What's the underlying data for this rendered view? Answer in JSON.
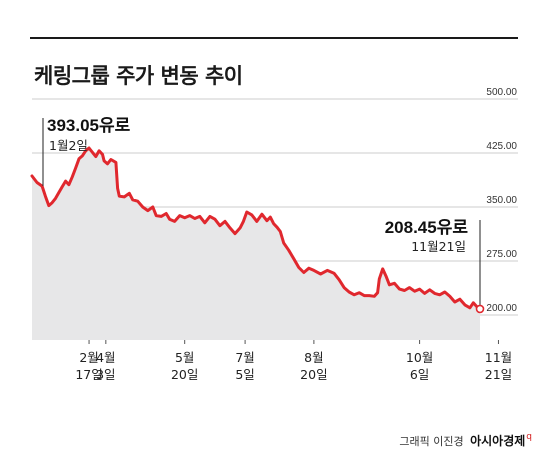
{
  "title": "케링그룹 주가 변동 추이",
  "credit": {
    "graphic_text": "그래픽 이진경",
    "brand": "아시아경제",
    "brand_mark": "q"
  },
  "colors": {
    "line": "#e0282e",
    "area": "#e7e7e8",
    "grid": "#999999",
    "text": "#1a1a1a"
  },
  "chart_data": {
    "type": "area",
    "ylim": [
      200,
      500
    ],
    "yticks": [
      "500.00",
      "425.00",
      "350.00",
      "275.00",
      "200.00"
    ],
    "xticks": [
      {
        "x": 34,
        "line1": "2월",
        "line2": "17일"
      },
      {
        "x": 44,
        "line1": "4월",
        "line2": "3일"
      },
      {
        "x": 91,
        "line1": "5월",
        "line2": "20일"
      },
      {
        "x": 127,
        "line1": "7월",
        "line2": "5일"
      },
      {
        "x": 168,
        "line1": "8월",
        "line2": "20일"
      },
      {
        "x": 231,
        "line1": "10월",
        "line2": "6일"
      },
      {
        "x": 278,
        "line1": "11월",
        "line2": "21일"
      }
    ],
    "annotations": [
      {
        "name": "start",
        "value": "393.05유로",
        "date": "1월2일"
      },
      {
        "name": "end",
        "value": "208.45유로",
        "date": "11월21일"
      }
    ],
    "series": [
      {
        "values": [
          [
            0,
            393.05
          ],
          [
            3,
            384
          ],
          [
            6,
            379
          ],
          [
            8,
            365
          ],
          [
            10,
            352
          ],
          [
            12,
            356
          ],
          [
            14,
            362
          ],
          [
            16,
            370
          ],
          [
            18,
            378
          ],
          [
            20,
            386
          ],
          [
            22,
            381
          ],
          [
            24,
            392
          ],
          [
            26,
            404
          ],
          [
            28,
            417
          ],
          [
            30,
            421
          ],
          [
            32,
            428
          ],
          [
            34,
            432
          ],
          [
            36,
            426
          ],
          [
            38,
            420
          ],
          [
            40,
            428
          ],
          [
            42,
            423
          ],
          [
            43,
            414
          ],
          [
            45,
            410
          ],
          [
            47,
            416
          ],
          [
            50,
            412
          ],
          [
            51,
            376
          ],
          [
            52,
            365
          ],
          [
            55,
            364
          ],
          [
            58,
            369
          ],
          [
            60,
            360
          ],
          [
            63,
            358
          ],
          [
            66,
            350
          ],
          [
            69,
            345
          ],
          [
            72,
            350
          ],
          [
            74,
            338
          ],
          [
            77,
            337
          ],
          [
            80,
            341
          ],
          [
            82,
            333
          ],
          [
            85,
            330
          ],
          [
            88,
            338
          ],
          [
            91,
            335
          ],
          [
            94,
            338
          ],
          [
            97,
            334
          ],
          [
            100,
            337
          ],
          [
            103,
            328
          ],
          [
            106,
            337
          ],
          [
            109,
            333
          ],
          [
            112,
            324
          ],
          [
            115,
            330
          ],
          [
            118,
            321
          ],
          [
            121,
            313
          ],
          [
            124,
            321
          ],
          [
            126,
            330
          ],
          [
            128,
            343
          ],
          [
            131,
            339
          ],
          [
            134,
            330
          ],
          [
            137,
            340
          ],
          [
            140,
            331
          ],
          [
            142,
            336
          ],
          [
            144,
            327
          ],
          [
            146,
            322
          ],
          [
            148,
            316
          ],
          [
            150,
            300
          ],
          [
            153,
            290
          ],
          [
            156,
            278
          ],
          [
            159,
            266
          ],
          [
            162,
            259
          ],
          [
            165,
            265
          ],
          [
            168,
            262
          ],
          [
            172,
            257
          ],
          [
            176,
            262
          ],
          [
            180,
            258
          ],
          [
            183,
            249
          ],
          [
            186,
            238
          ],
          [
            189,
            232
          ],
          [
            192,
            228
          ],
          [
            195,
            231
          ],
          [
            198,
            227
          ],
          [
            201,
            227
          ],
          [
            204,
            226
          ],
          [
            206,
            231
          ],
          [
            207,
            250
          ],
          [
            209,
            264
          ],
          [
            211,
            254
          ],
          [
            213,
            242
          ],
          [
            216,
            244
          ],
          [
            219,
            236
          ],
          [
            222,
            234
          ],
          [
            225,
            238
          ],
          [
            228,
            233
          ],
          [
            231,
            236
          ],
          [
            234,
            230
          ],
          [
            237,
            235
          ],
          [
            240,
            230
          ],
          [
            243,
            228
          ],
          [
            246,
            232
          ],
          [
            249,
            226
          ],
          [
            252,
            218
          ],
          [
            255,
            222
          ],
          [
            258,
            214
          ],
          [
            261,
            210
          ],
          [
            263,
            217
          ],
          [
            265,
            212
          ],
          [
            267,
            208.45
          ]
        ]
      }
    ]
  }
}
